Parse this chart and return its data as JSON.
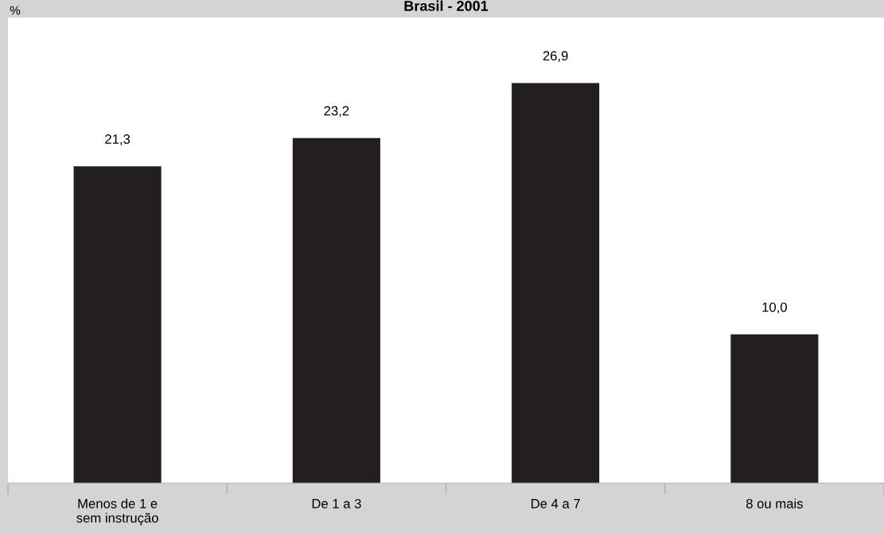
{
  "chart_data": {
    "type": "bar",
    "title": "Brasil - 2001",
    "ylabel": "%",
    "categories": [
      "Menos de 1 e\nsem instrução",
      "De 1 a 3",
      "De 4 a 7",
      "8 ou mais"
    ],
    "values": [
      21.3,
      23.2,
      26.9,
      10.0
    ],
    "value_labels": [
      "21,3",
      "23,2",
      "26,9",
      "10,0"
    ],
    "color": "#231f20",
    "ylim": [
      0,
      31.3
    ],
    "tick_labels": "x",
    "grid": false,
    "legend": false
  }
}
